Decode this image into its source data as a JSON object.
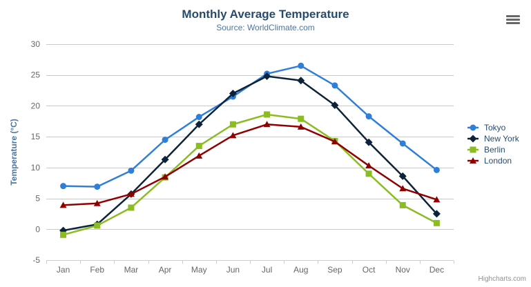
{
  "chart_data": {
    "type": "line",
    "title": "Monthly Average Temperature",
    "subtitle": "Source: WorldClimate.com",
    "categories": [
      "Jan",
      "Feb",
      "Mar",
      "Apr",
      "May",
      "Jun",
      "Jul",
      "Aug",
      "Sep",
      "Oct",
      "Nov",
      "Dec"
    ],
    "series": [
      {
        "name": "Tokyo",
        "color": "#2f7ed8",
        "marker": "circle",
        "values": [
          7.0,
          6.9,
          9.5,
          14.5,
          18.2,
          21.5,
          25.2,
          26.5,
          23.3,
          18.3,
          13.9,
          9.6
        ]
      },
      {
        "name": "New York",
        "color": "#0d233a",
        "marker": "diamond",
        "values": [
          -0.2,
          0.8,
          5.7,
          11.3,
          17.0,
          22.0,
          24.8,
          24.1,
          20.1,
          14.1,
          8.6,
          2.5
        ]
      },
      {
        "name": "Berlin",
        "color": "#8bbc21",
        "marker": "square",
        "values": [
          -0.9,
          0.6,
          3.5,
          8.4,
          13.5,
          17.0,
          18.6,
          17.9,
          14.3,
          9.0,
          3.9,
          1.0
        ]
      },
      {
        "name": "London",
        "color": "#910000",
        "marker": "triangle",
        "values": [
          3.9,
          4.2,
          5.7,
          8.5,
          11.9,
          15.2,
          17.0,
          16.6,
          14.2,
          10.3,
          6.6,
          4.8
        ]
      }
    ],
    "xlabel": "",
    "ylabel": "Temperature (°C)",
    "ylim": [
      -5,
      30
    ],
    "yticks": [
      -5,
      0,
      5,
      10,
      15,
      20,
      25,
      30
    ],
    "grid": true,
    "legend_position": "right"
  },
  "credits": {
    "label": "Highcharts.com"
  },
  "colors": {
    "title": "#274b6d",
    "subtitle": "#4d759e",
    "axis_title": "#4d759e",
    "axis_label": "#666666",
    "grid_line": "#c8c8c8",
    "axis_line": "#c0d0e0",
    "credits": "#909090",
    "menu_icon": "#666666",
    "background": "#ffffff"
  }
}
